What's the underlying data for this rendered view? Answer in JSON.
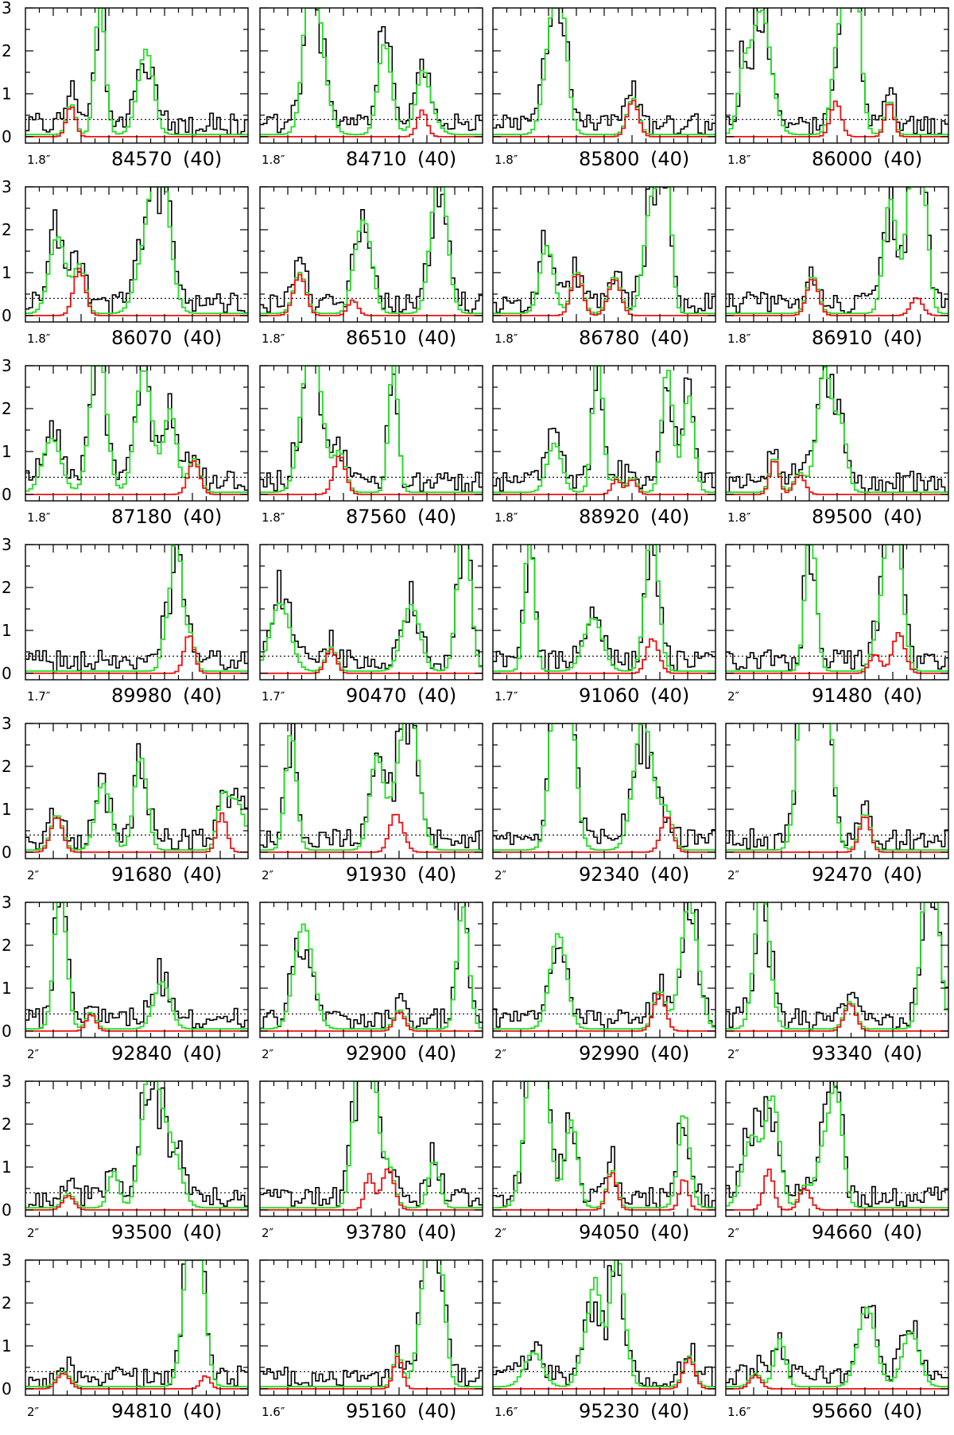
{
  "chart_data": {
    "type": "line",
    "title": "",
    "ylim": [
      -0.15,
      3
    ],
    "y_ticks": [
      0,
      1,
      2,
      3
    ],
    "threshold_line": {
      "value": 0.4,
      "style": "dotted",
      "color": "#000000"
    },
    "series_styles": [
      {
        "name": "observed",
        "color": "#000000"
      },
      {
        "name": "model_total",
        "color": "#22dd22"
      },
      {
        "name": "model_component",
        "color": "#ee1111"
      }
    ],
    "panels": [
      {
        "freq": "84570",
        "beam": "1.8″",
        "weight": "(40)"
      },
      {
        "freq": "84710",
        "beam": "1.8″",
        "weight": "(40)"
      },
      {
        "freq": "85800",
        "beam": "1.8″",
        "weight": "(40)"
      },
      {
        "freq": "86000",
        "beam": "1.8″",
        "weight": "(40)"
      },
      {
        "freq": "86070",
        "beam": "1.8″",
        "weight": "(40)"
      },
      {
        "freq": "86510",
        "beam": "1.8″",
        "weight": "(40)"
      },
      {
        "freq": "86780",
        "beam": "1.8″",
        "weight": "(40)"
      },
      {
        "freq": "86910",
        "beam": "1.8″",
        "weight": "(40)"
      },
      {
        "freq": "87180",
        "beam": "1.8″",
        "weight": "(40)"
      },
      {
        "freq": "87560",
        "beam": "1.8″",
        "weight": "(40)"
      },
      {
        "freq": "88920",
        "beam": "1.8″",
        "weight": "(40)"
      },
      {
        "freq": "89500",
        "beam": "1.8″",
        "weight": "(40)"
      },
      {
        "freq": "89980",
        "beam": "1.7″",
        "weight": "(40)"
      },
      {
        "freq": "90470",
        "beam": "1.7″",
        "weight": "(40)"
      },
      {
        "freq": "91060",
        "beam": "1.7″",
        "weight": "(40)"
      },
      {
        "freq": "91480",
        "beam": "2″",
        "weight": "(40)"
      },
      {
        "freq": "91680",
        "beam": "2″",
        "weight": "(40)"
      },
      {
        "freq": "91930",
        "beam": "2″",
        "weight": "(40)"
      },
      {
        "freq": "92340",
        "beam": "2″",
        "weight": "(40)"
      },
      {
        "freq": "92470",
        "beam": "2″",
        "weight": "(40)"
      },
      {
        "freq": "92840",
        "beam": "2″",
        "weight": "(40)"
      },
      {
        "freq": "92900",
        "beam": "2″",
        "weight": "(40)"
      },
      {
        "freq": "92990",
        "beam": "2″",
        "weight": "(40)"
      },
      {
        "freq": "93340",
        "beam": "2″",
        "weight": "(40)"
      },
      {
        "freq": "93500",
        "beam": "2″",
        "weight": "(40)"
      },
      {
        "freq": "93780",
        "beam": "2″",
        "weight": "(40)"
      },
      {
        "freq": "94050",
        "beam": "2″",
        "weight": "(40)"
      },
      {
        "freq": "94660",
        "beam": "2″",
        "weight": "(40)"
      },
      {
        "freq": "94810",
        "beam": "2″",
        "weight": "(40)"
      },
      {
        "freq": "95160",
        "beam": "1.6″",
        "weight": "(40)"
      },
      {
        "freq": "95230",
        "beam": "1.6″",
        "weight": "(40)"
      },
      {
        "freq": "95660",
        "beam": "1.6″",
        "weight": "(40)"
      }
    ]
  }
}
